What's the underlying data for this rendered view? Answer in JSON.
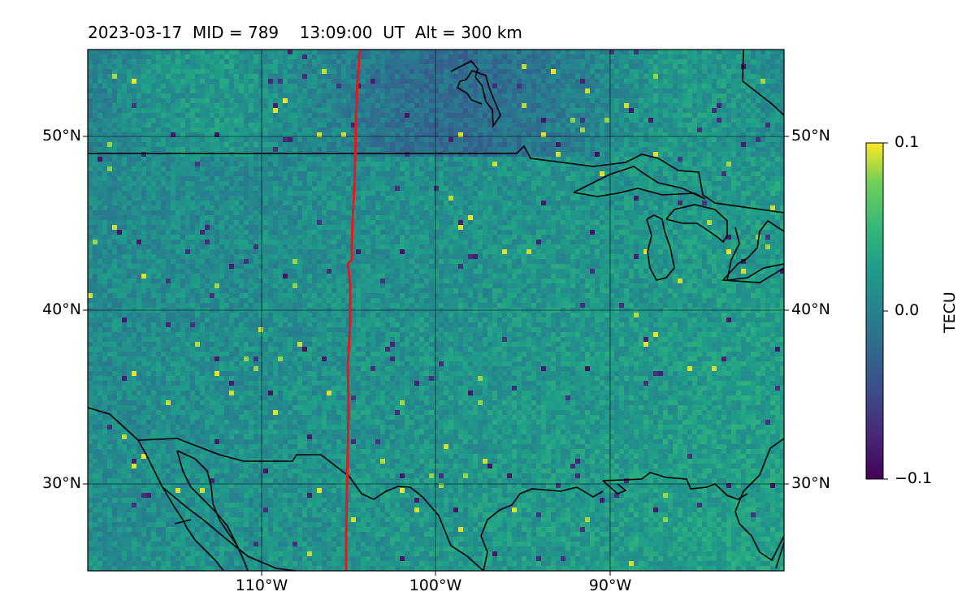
{
  "title": {
    "date": "2023-03-17",
    "mid_text": "MID = 789",
    "time_text": "13:09:00  UT",
    "alt_text": "Alt = 300 km"
  },
  "map": {
    "lon_range": [
      -120,
      -80
    ],
    "lat_range": [
      25,
      55
    ],
    "lat_ticks": [
      {
        "value": 50,
        "label": "50°N"
      },
      {
        "value": 40,
        "label": "40°N"
      },
      {
        "value": 30,
        "label": "30°N"
      }
    ],
    "lon_ticks": [
      {
        "value": -110,
        "label": "110°W"
      },
      {
        "value": -100,
        "label": "100°W"
      },
      {
        "value": -90,
        "label": "90°W"
      }
    ],
    "track_color": "#e8171c",
    "coast_color": "#000000"
  },
  "colorbar": {
    "label": "TECU",
    "colormap": "viridis",
    "ticks": [
      {
        "value": 0.1,
        "label": "0.1"
      },
      {
        "value": 0.0,
        "label": "0.0"
      },
      {
        "value": -0.1,
        "label": "−0.1"
      }
    ],
    "range": [
      -0.1,
      0.1
    ]
  }
}
